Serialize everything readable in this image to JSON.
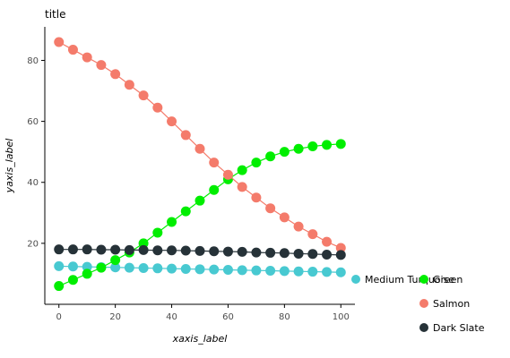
{
  "chart_data": {
    "type": "line",
    "title": "title",
    "xlabel": "xaxis_label",
    "ylabel": "yaxis_label",
    "xlim": [
      -5,
      105
    ],
    "ylim": [
      0,
      91
    ],
    "xticks": [
      0,
      20,
      40,
      60,
      80,
      100
    ],
    "yticks": [
      20,
      40,
      60,
      80
    ],
    "grid": false,
    "legend": "bottom-right",
    "series": [
      {
        "name": "Medium Turquoise",
        "color": "#48c9d1",
        "x": [
          0,
          5,
          10,
          15,
          20,
          25,
          30,
          35,
          40,
          45,
          50,
          55,
          60,
          65,
          70,
          75,
          80,
          85,
          90,
          95,
          100
        ],
        "values": [
          12.5,
          12.4,
          12.3,
          12.2,
          12.1,
          12.0,
          11.9,
          11.8,
          11.7,
          11.6,
          11.5,
          11.4,
          11.3,
          11.2,
          11.1,
          11.0,
          10.9,
          10.8,
          10.7,
          10.6,
          10.5
        ]
      },
      {
        "name": "Green",
        "color": "#00ee00",
        "x": [
          0,
          5,
          10,
          15,
          20,
          25,
          30,
          35,
          40,
          45,
          50,
          55,
          60,
          65,
          70,
          75,
          80,
          85,
          90,
          95,
          100
        ],
        "values": [
          6.0,
          8.0,
          10.0,
          12.0,
          14.5,
          17.0,
          20.0,
          23.5,
          27.0,
          30.5,
          34.0,
          37.5,
          41.0,
          44.0,
          46.5,
          48.5,
          50.0,
          51.0,
          51.8,
          52.3,
          52.6
        ]
      },
      {
        "name": "Salmon",
        "color": "#f47b6b",
        "x": [
          0,
          5,
          10,
          15,
          20,
          25,
          30,
          35,
          40,
          45,
          50,
          55,
          60,
          65,
          70,
          75,
          80,
          85,
          90,
          95,
          100
        ],
        "values": [
          86.0,
          83.5,
          81.0,
          78.5,
          75.5,
          72.0,
          68.5,
          64.5,
          60.0,
          55.5,
          51.0,
          46.5,
          42.5,
          38.5,
          35.0,
          31.5,
          28.5,
          25.5,
          23.0,
          20.5,
          18.5
        ]
      },
      {
        "name": "Dark Slate",
        "color": "#263238",
        "x": [
          0,
          5,
          10,
          15,
          20,
          25,
          30,
          35,
          40,
          45,
          50,
          55,
          60,
          65,
          70,
          75,
          80,
          85,
          90,
          95,
          100
        ],
        "values": [
          18.0,
          18.0,
          18.0,
          17.9,
          17.9,
          17.8,
          17.8,
          17.7,
          17.7,
          17.6,
          17.5,
          17.4,
          17.3,
          17.2,
          17.0,
          16.9,
          16.8,
          16.6,
          16.5,
          16.3,
          16.2
        ]
      }
    ]
  }
}
